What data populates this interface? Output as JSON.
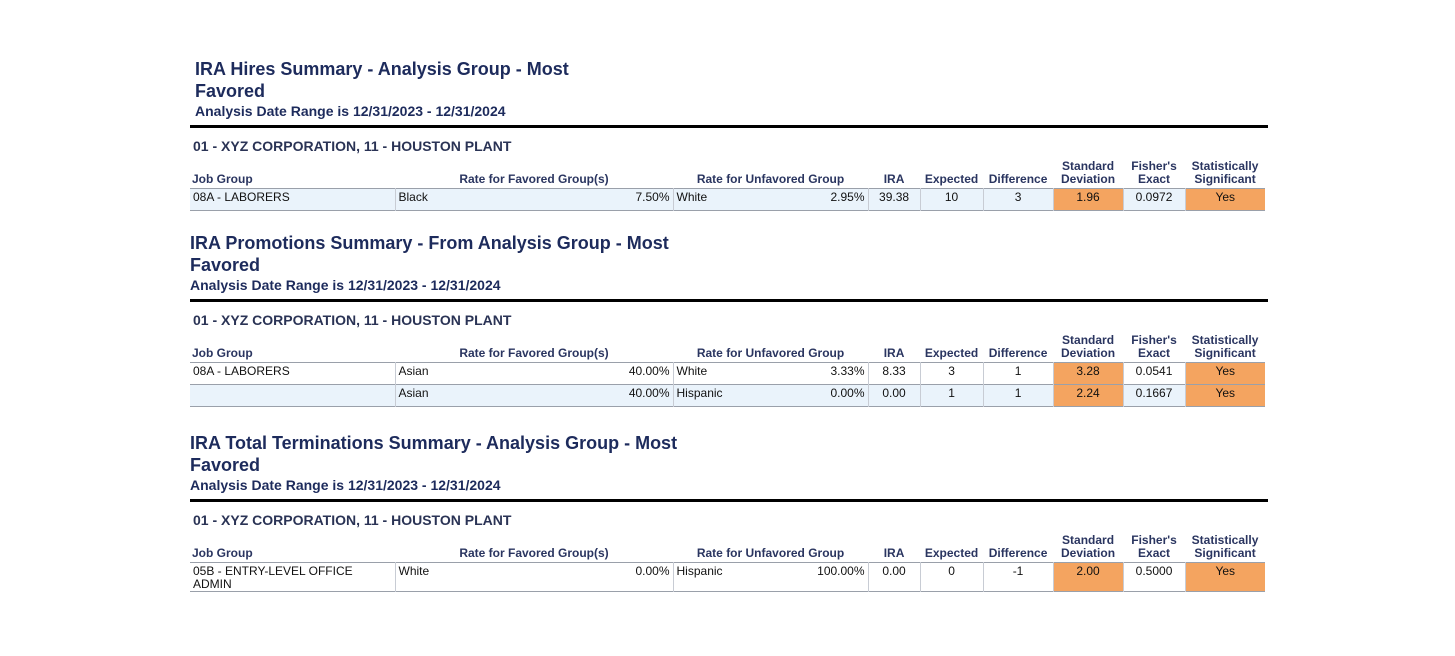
{
  "columns": {
    "job_group": "Job Group",
    "favored": "Rate for Favored Group(s)",
    "unfavored": "Rate for Unfavored Group",
    "ira": "IRA",
    "expected": "Expected",
    "difference": "Difference",
    "std_dev": "Standard Deviation",
    "fisher": "Fisher's Exact",
    "significant": "Statistically Significant"
  },
  "sections": [
    {
      "title": "IRA Hires Summary - Analysis Group - Most Favored",
      "date_range": "Analysis Date Range is 12/31/2023 - 12/31/2024",
      "company": "01 - XYZ CORPORATION, 11 - HOUSTON PLANT",
      "rows": [
        {
          "job_group": "08A - LABORERS",
          "favored_group": "Black",
          "favored_rate": "7.50%",
          "unfavored_group": "White",
          "unfavored_rate": "2.95%",
          "ira": "39.38",
          "expected": "10",
          "difference": "3",
          "std_dev": "1.96",
          "fisher": "0.0972",
          "significant": "Yes"
        }
      ]
    },
    {
      "title": "IRA Promotions Summary - From Analysis Group - Most Favored",
      "date_range": "Analysis Date Range is 12/31/2023 - 12/31/2024",
      "company": "01 - XYZ CORPORATION, 11 - HOUSTON PLANT",
      "rows": [
        {
          "job_group": "08A - LABORERS",
          "favored_group": "Asian",
          "favored_rate": "40.00%",
          "unfavored_group": "White",
          "unfavored_rate": "3.33%",
          "ira": "8.33",
          "expected": "3",
          "difference": "1",
          "std_dev": "3.28",
          "fisher": "0.0541",
          "significant": "Yes"
        },
        {
          "favored_group": "Asian",
          "favored_rate": "40.00%",
          "unfavored_group": "Hispanic",
          "unfavored_rate": "0.00%",
          "ira": "0.00",
          "expected": "1",
          "difference": "1",
          "std_dev": "2.24",
          "fisher": "0.1667",
          "significant": "Yes"
        }
      ]
    },
    {
      "title": "IRA Total Terminations Summary - Analysis Group - Most Favored",
      "date_range": "Analysis Date Range is 12/31/2023 - 12/31/2024",
      "company": "01 - XYZ CORPORATION, 11 - HOUSTON PLANT",
      "rows": [
        {
          "job_group": "05B - ENTRY-LEVEL OFFICE ADMIN",
          "favored_group": "White",
          "favored_rate": "0.00%",
          "unfavored_group": "Hispanic",
          "unfavored_rate": "100.00%",
          "ira": "0.00",
          "expected": "0",
          "difference": "-1",
          "std_dev": "2.00",
          "fisher": "0.5000",
          "significant": "Yes"
        }
      ]
    }
  ]
}
